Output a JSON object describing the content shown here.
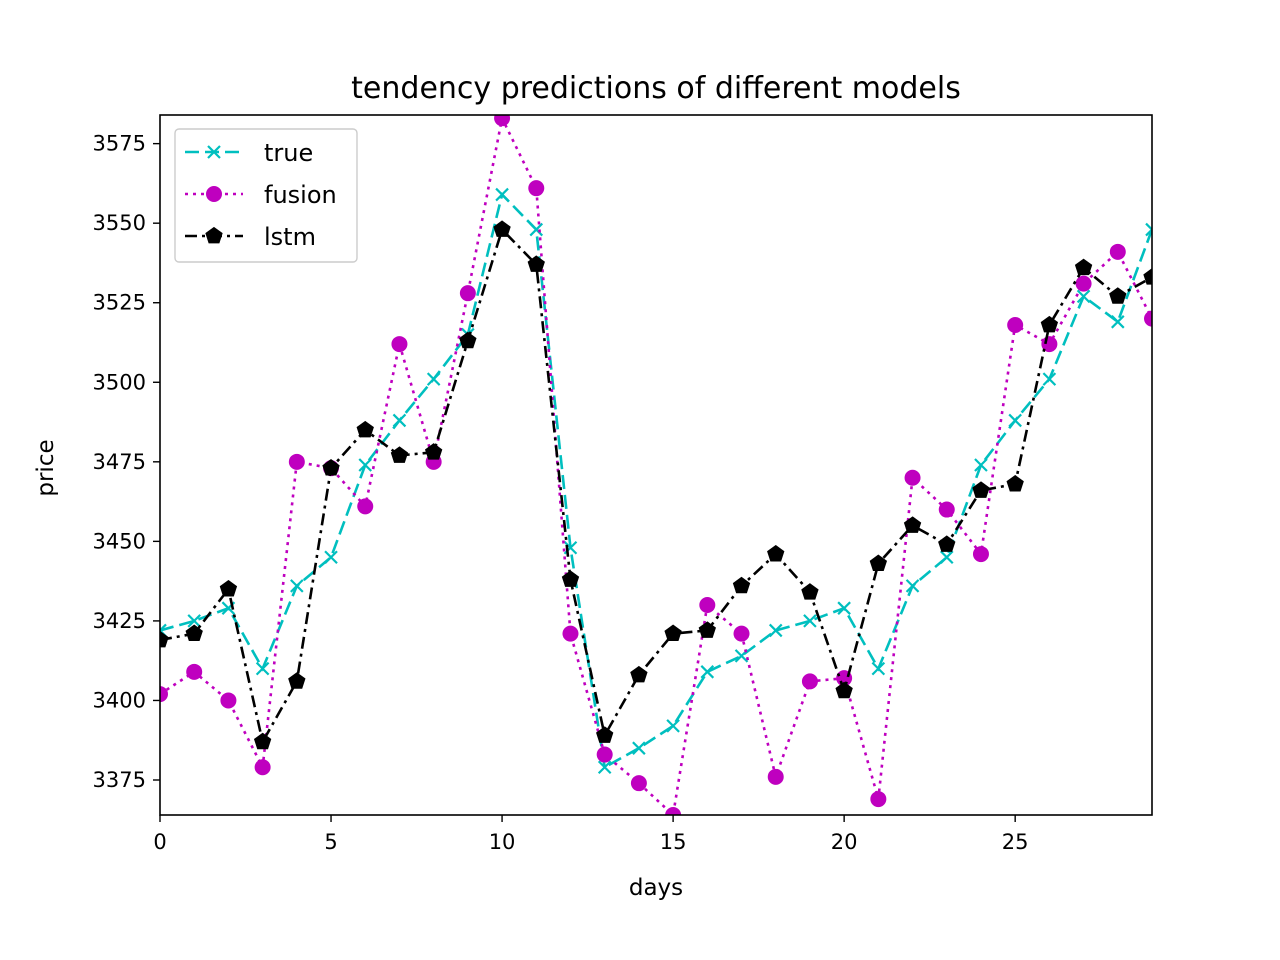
{
  "chart_data": {
    "type": "line",
    "title": "tendency predictions of different models",
    "xlabel": "days",
    "ylabel": "price",
    "xlim": [
      0,
      29
    ],
    "ylim": [
      3364,
      3584
    ],
    "x_ticks": [
      0,
      5,
      10,
      15,
      20,
      25
    ],
    "y_ticks": [
      3375,
      3400,
      3425,
      3450,
      3475,
      3500,
      3525,
      3550,
      3575
    ],
    "grid": false,
    "legend": "top-left",
    "x": [
      0,
      1,
      2,
      3,
      4,
      5,
      6,
      7,
      8,
      9,
      10,
      11,
      12,
      13,
      14,
      15,
      16,
      17,
      18,
      19,
      20,
      21,
      22,
      23,
      24,
      25,
      26,
      27,
      28,
      29
    ],
    "series": [
      {
        "name": "true",
        "color": "#00bfbf",
        "line_style": "dashed",
        "marker": "x",
        "values": [
          3422,
          3425,
          3429,
          3410,
          3436,
          3445,
          3474,
          3488,
          3501,
          3515,
          3559,
          3548,
          3448,
          3379,
          3385,
          3392,
          3409,
          3414,
          3422,
          3425,
          3429,
          3410,
          3436,
          3445,
          3474,
          3488,
          3501,
          3527,
          3519,
          3548
        ]
      },
      {
        "name": "fusion",
        "color": "#bf00bf",
        "line_style": "dotted",
        "marker": "circle",
        "values": [
          3402,
          3409,
          3400,
          3379,
          3475,
          3473,
          3461,
          3512,
          3475,
          3528,
          3583,
          3561,
          3421,
          3383,
          3374,
          3364,
          3430,
          3421,
          3376,
          3406,
          3407,
          3369,
          3470,
          3460,
          3446,
          3518,
          3512,
          3531,
          3541,
          3520
        ]
      },
      {
        "name": "lstm",
        "color": "#000000",
        "line_style": "dashdot",
        "marker": "pentagon",
        "values": [
          3419,
          3421,
          3435,
          3387,
          3406,
          3473,
          3485,
          3477,
          3478,
          3513,
          3548,
          3537,
          3438,
          3389,
          3408,
          3421,
          3422,
          3436,
          3446,
          3434,
          3403,
          3443,
          3455,
          3449,
          3466,
          3468,
          3518,
          3536,
          3527,
          3533
        ]
      }
    ]
  }
}
